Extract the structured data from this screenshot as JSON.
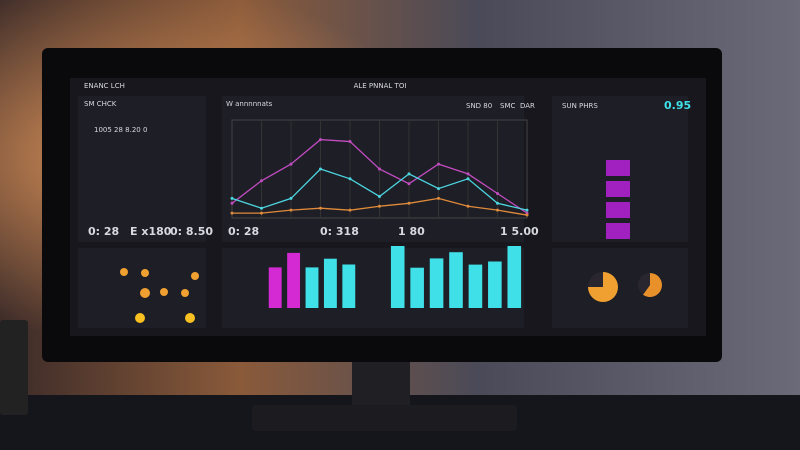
{
  "header": {
    "title": "ENANC LCH",
    "center": "ALE PNNAL TOI"
  },
  "panels": {
    "left_title": "SM CHCK",
    "left_value": "1005 28 8.20 0",
    "mid_title": "W annnnnats",
    "badge": "SND 80",
    "badge2": "SMC",
    "badge3": "DAR",
    "right_title": "SUN PHRS",
    "right_value": "0.95"
  },
  "stats": [
    "0: 28",
    "E x180",
    "0: 8.50",
    "0: 28",
    "0: 318",
    "1 80",
    "1 5.00"
  ],
  "chart_data": [
    {
      "type": "line",
      "categories": [
        null,
        null,
        null,
        null,
        null,
        null,
        null,
        null,
        null,
        null,
        null
      ],
      "ylim": [
        0,
        100
      ],
      "grid": true,
      "series": [
        {
          "color": "#c04cc0",
          "values": [
            15,
            38,
            55,
            80,
            78,
            50,
            35,
            55,
            45,
            25,
            5
          ]
        },
        {
          "color": "#4cd6e0",
          "values": [
            20,
            10,
            20,
            50,
            40,
            22,
            45,
            30,
            40,
            15,
            8
          ]
        },
        {
          "color": "#e08a3a",
          "values": [
            5,
            5,
            8,
            10,
            8,
            12,
            15,
            20,
            12,
            8,
            3
          ]
        }
      ]
    },
    {
      "type": "bar",
      "categories": [
        null,
        null,
        null,
        null,
        null
      ],
      "ylim": [
        0,
        100
      ],
      "values": [
        70,
        95,
        70,
        85,
        75
      ],
      "colors": [
        "#d42ad4",
        "#d42ad4",
        "#3fe0e8",
        "#3fe0e8",
        "#3fe0e8"
      ]
    },
    {
      "type": "bar",
      "categories": [
        null,
        null,
        null,
        null,
        null,
        null,
        null
      ],
      "ylim": [
        0,
        100
      ],
      "values": [
        100,
        65,
        80,
        90,
        70,
        75,
        100
      ],
      "colors": [
        "#3fe0e8",
        "#3fe0e8",
        "#3fe0e8",
        "#3fe0e8",
        "#3fe0e8",
        "#3fe0e8",
        "#3fe0e8"
      ]
    },
    {
      "type": "pie",
      "values": [
        75,
        25
      ],
      "colors": [
        "#f0a030",
        "#2a2630"
      ]
    },
    {
      "type": "pie",
      "values": [
        60,
        40
      ],
      "colors": [
        "#e8902a",
        "#2a2630"
      ]
    }
  ]
}
